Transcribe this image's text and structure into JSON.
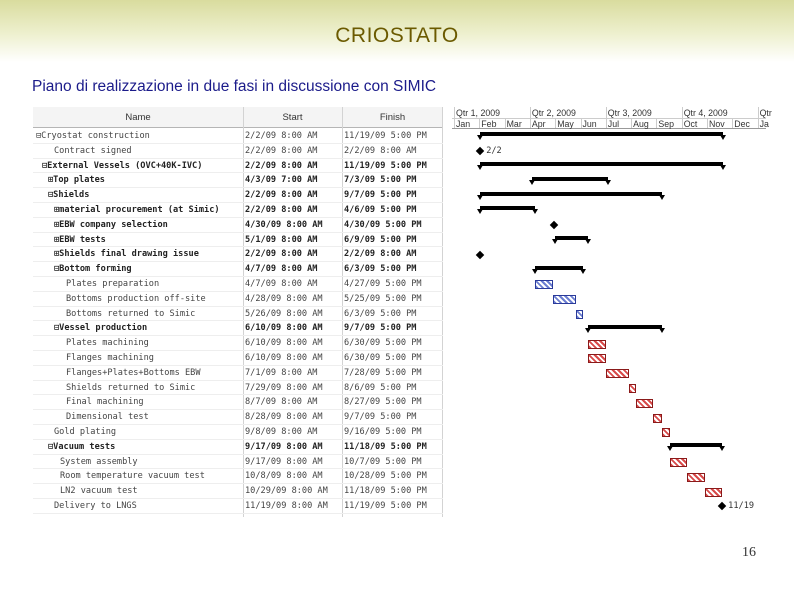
{
  "slide": {
    "title": "CRIOSTATO",
    "subtitle": "Piano di realizzazione in due fasi in discussione con SIMIC",
    "page_number": "16"
  },
  "table": {
    "headers": {
      "name": "Name",
      "start": "Start",
      "finish": "Finish"
    },
    "rows": [
      {
        "name": "⊟Cryostat construction",
        "start": "2/2/09 8:00 AM",
        "finish": "11/19/09 5:00 PM",
        "bold": false,
        "indent": 0
      },
      {
        "name": "Contract signed",
        "start": "2/2/09 8:00 AM",
        "finish": "2/2/09 8:00 AM",
        "bold": false,
        "indent": 3
      },
      {
        "name": "⊟External Vessels (OVC+40K-IVC)",
        "start": "2/2/09 8:00 AM",
        "finish": "11/19/09 5:00 PM",
        "bold": true,
        "indent": 1
      },
      {
        "name": "⊞Top plates",
        "start": "4/3/09 7:00 AM",
        "finish": "7/3/09 5:00 PM",
        "bold": true,
        "indent": 2
      },
      {
        "name": "⊟Shields",
        "start": "2/2/09 8:00 AM",
        "finish": "9/7/09 5:00 PM",
        "bold": true,
        "indent": 2
      },
      {
        "name": "⊞material procurement (at Simic)",
        "start": "2/2/09 8:00 AM",
        "finish": "4/6/09 5:00 PM",
        "bold": true,
        "indent": 3
      },
      {
        "name": "⊞EBW company selection",
        "start": "4/30/09 8:00 AM",
        "finish": "4/30/09 5:00 PM",
        "bold": true,
        "indent": 3
      },
      {
        "name": "⊞EBW tests",
        "start": "5/1/09 8:00 AM",
        "finish": "6/9/09 5:00 PM",
        "bold": true,
        "indent": 3
      },
      {
        "name": "⊞Shields final drawing issue",
        "start": "2/2/09 8:00 AM",
        "finish": "2/2/09 8:00 AM",
        "bold": true,
        "indent": 3
      },
      {
        "name": "⊟Bottom forming",
        "start": "4/7/09 8:00 AM",
        "finish": "6/3/09 5:00 PM",
        "bold": true,
        "indent": 3
      },
      {
        "name": "Plates preparation",
        "start": "4/7/09 8:00 AM",
        "finish": "4/27/09 5:00 PM",
        "bold": false,
        "indent": 5
      },
      {
        "name": "Bottoms production off-site",
        "start": "4/28/09 8:00 AM",
        "finish": "5/25/09 5:00 PM",
        "bold": false,
        "indent": 5
      },
      {
        "name": "Bottoms returned to Simic",
        "start": "5/26/09 8:00 AM",
        "finish": "6/3/09 5:00 PM",
        "bold": false,
        "indent": 5
      },
      {
        "name": "⊟Vessel production",
        "start": "6/10/09 8:00 AM",
        "finish": "9/7/09 5:00 PM",
        "bold": true,
        "indent": 3
      },
      {
        "name": "Plates machining",
        "start": "6/10/09 8:00 AM",
        "finish": "6/30/09 5:00 PM",
        "bold": false,
        "indent": 5
      },
      {
        "name": "Flanges machining",
        "start": "6/10/09 8:00 AM",
        "finish": "6/30/09 5:00 PM",
        "bold": false,
        "indent": 5
      },
      {
        "name": "Flanges+Plates+Bottoms EBW",
        "start": "7/1/09 8:00 AM",
        "finish": "7/28/09 5:00 PM",
        "bold": false,
        "indent": 5
      },
      {
        "name": "Shields returned to Simic",
        "start": "7/29/09 8:00 AM",
        "finish": "8/6/09 5:00 PM",
        "bold": false,
        "indent": 5
      },
      {
        "name": "Final machining",
        "start": "8/7/09 8:00 AM",
        "finish": "8/27/09 5:00 PM",
        "bold": false,
        "indent": 5
      },
      {
        "name": "Dimensional test",
        "start": "8/28/09 8:00 AM",
        "finish": "9/7/09 5:00 PM",
        "bold": false,
        "indent": 5
      },
      {
        "name": "Gold plating",
        "start": "9/8/09 8:00 AM",
        "finish": "9/16/09 5:00 PM",
        "bold": false,
        "indent": 3
      },
      {
        "name": "⊟Vacuum tests",
        "start": "9/17/09 8:00 AM",
        "finish": "11/18/09 5:00 PM",
        "bold": true,
        "indent": 2
      },
      {
        "name": "System assembly",
        "start": "9/17/09 8:00 AM",
        "finish": "10/7/09 5:00 PM",
        "bold": false,
        "indent": 4
      },
      {
        "name": "Room temperature vacuum test",
        "start": "10/8/09 8:00 AM",
        "finish": "10/28/09 5:00 PM",
        "bold": false,
        "indent": 4
      },
      {
        "name": "LN2 vacuum test",
        "start": "10/29/09 8:00 AM",
        "finish": "11/18/09 5:00 PM",
        "bold": false,
        "indent": 4
      },
      {
        "name": "Delivery to LNGS",
        "start": "11/19/09 8:00 AM",
        "finish": "11/19/09 5:00 PM",
        "bold": false,
        "indent": 3
      }
    ]
  },
  "gantt": {
    "quarters": [
      "Qtr 1, 2009",
      "Qtr 2, 2009",
      "Qtr 3, 2009",
      "Qtr 4, 2009",
      "Qtr"
    ],
    "months": [
      "Jan",
      "Feb",
      "Mar",
      "Apr",
      "May",
      "Jun",
      "Jul",
      "Aug",
      "Sep",
      "Oct",
      "Nov",
      "Dec",
      "Ja"
    ],
    "milestone_labels": {
      "contract": "2/2",
      "delivery": "11/19"
    },
    "colors": {
      "summary": "#000000",
      "shields_task": "#6c7fd1",
      "vessel_task": "#d84a4a"
    }
  }
}
